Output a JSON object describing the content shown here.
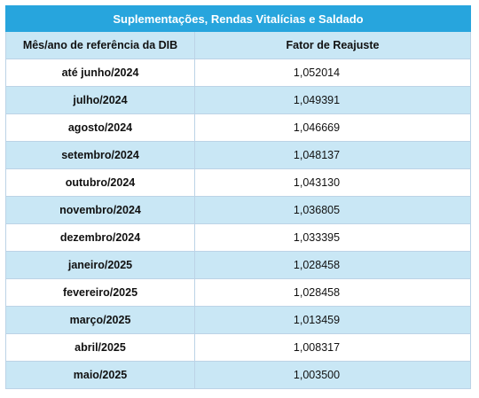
{
  "table": {
    "title": "Suplementações, Rendas Vitalícias e Saldado",
    "headers": [
      "Mês/ano de referência da DIB",
      "Fator de Reajuste"
    ],
    "rows": [
      {
        "month": "até junho/2024",
        "factor": "1,052014"
      },
      {
        "month": "julho/2024",
        "factor": "1,049391"
      },
      {
        "month": "agosto/2024",
        "factor": "1,046669"
      },
      {
        "month": "setembro/2024",
        "factor": "1,048137"
      },
      {
        "month": "outubro/2024",
        "factor": "1,043130"
      },
      {
        "month": "novembro/2024",
        "factor": "1,036805"
      },
      {
        "month": "dezembro/2024",
        "factor": "1,033395"
      },
      {
        "month": "janeiro/2025",
        "factor": "1,028458"
      },
      {
        "month": "fevereiro/2025",
        "factor": "1,028458"
      },
      {
        "month": "março/2025",
        "factor": "1,013459"
      },
      {
        "month": "abril/2025",
        "factor": "1,008317"
      },
      {
        "month": "maio/2025",
        "factor": "1,003500"
      }
    ]
  },
  "colors": {
    "title_bg": "#27a5dd",
    "stripe_bg": "#c9e7f5",
    "border": "#bcd3e6"
  }
}
